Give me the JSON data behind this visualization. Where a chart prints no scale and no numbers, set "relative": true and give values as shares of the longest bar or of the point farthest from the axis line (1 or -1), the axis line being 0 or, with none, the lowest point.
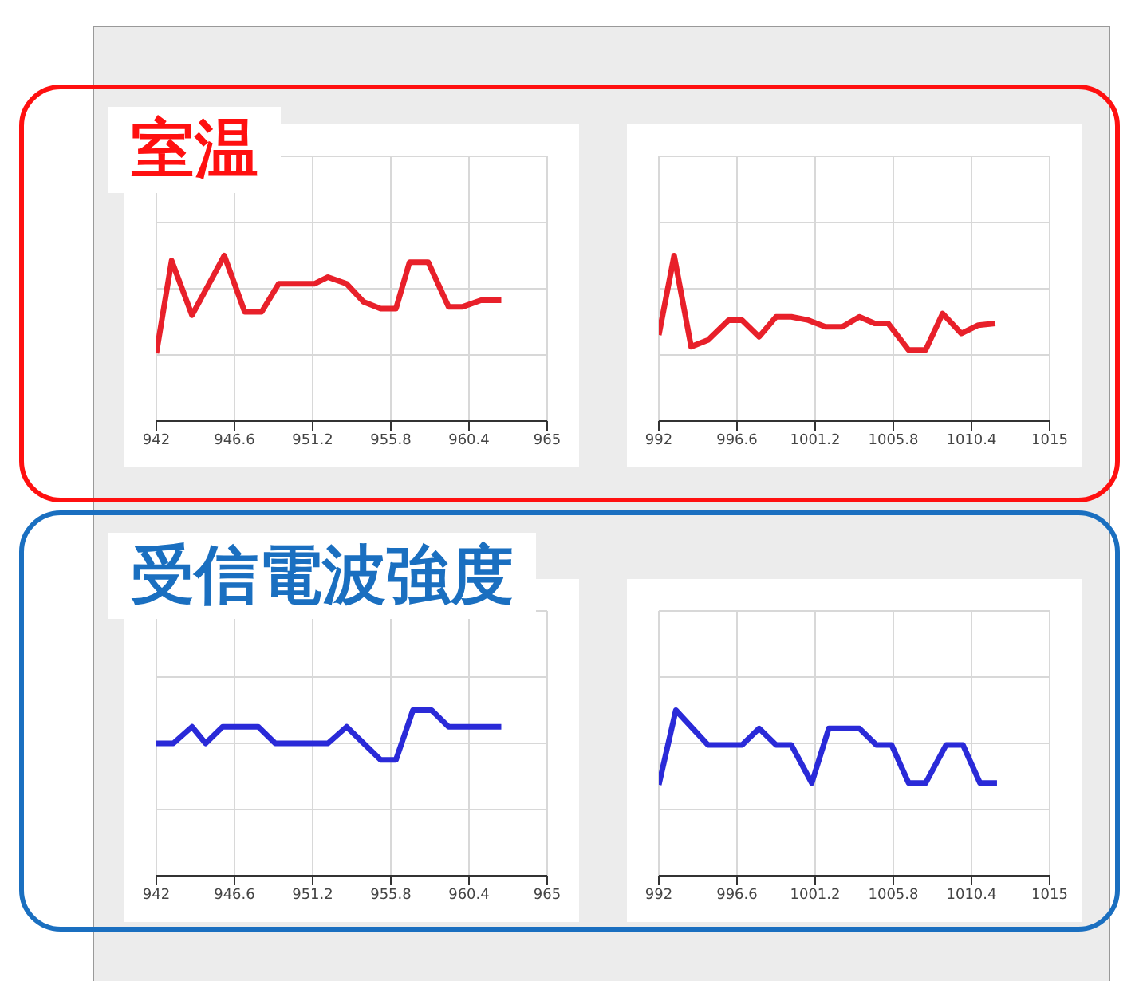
{
  "chart_data": [
    {
      "type": "line",
      "relative": true,
      "x": [
        942,
        942.9,
        944.1,
        946.0,
        947.2,
        948.2,
        949.2,
        951.3,
        952.1,
        953.2,
        954.2,
        955.2,
        956.1,
        956.9,
        958.0,
        959.2,
        960.0,
        961.1,
        962.3
      ],
      "series": [
        {
          "color": "#e8202a",
          "values": [
            0.41,
            0.97,
            0.64,
            1,
            0.66,
            0.66,
            0.83,
            0.83,
            0.87,
            0.83,
            0.72,
            0.68,
            0.68,
            0.96,
            0.96,
            0.69,
            0.69,
            0.73,
            0.73
          ]
        }
      ],
      "xlim": [
        942,
        965
      ],
      "xticks": [
        942,
        946.6,
        951.2,
        955.8,
        960.4,
        965
      ],
      "grid": true,
      "tick_labels": "x",
      "marker": "none",
      "line_style": "solid",
      "legend": false,
      "annotations": [
        "室温"
      ]
    },
    {
      "type": "line",
      "relative": true,
      "x": [
        992,
        992.9,
        993.9,
        994.9,
        996.1,
        996.9,
        997.9,
        998.9,
        999.8,
        1000.8,
        1001.8,
        1002.8,
        1003.8,
        1004.7,
        1005.5,
        1006.7,
        1007.7,
        1008.7,
        1009.8,
        1010.8,
        1011.8
      ],
      "series": [
        {
          "color": "#e8202a",
          "values": [
            0.52,
            1,
            0.45,
            0.49,
            0.61,
            0.61,
            0.51,
            0.63,
            0.63,
            0.61,
            0.57,
            0.57,
            0.63,
            0.59,
            0.59,
            0.43,
            0.43,
            0.65,
            0.53,
            0.58,
            0.59
          ]
        }
      ],
      "xlim": [
        992,
        1015
      ],
      "xticks": [
        992,
        996.6,
        1001.2,
        1005.8,
        1010.4,
        1015
      ],
      "grid": true,
      "tick_labels": "x",
      "marker": "none",
      "line_style": "solid",
      "legend": false
    },
    {
      "type": "line",
      "relative": true,
      "x": [
        942,
        943.0,
        944.1,
        944.9,
        945.9,
        948.0,
        949.0,
        952.1,
        953.2,
        954.2,
        955.2,
        956.1,
        957.1,
        958.2,
        959.2,
        962.3
      ],
      "series": [
        {
          "color": "#2a2ad8",
          "values": [
            0.8,
            0.8,
            0.9,
            0.8,
            0.9,
            0.9,
            0.8,
            0.8,
            0.9,
            0.8,
            0.7,
            0.7,
            1,
            1,
            0.9,
            0.9
          ]
        }
      ],
      "xlim": [
        942,
        965
      ],
      "xticks": [
        942,
        946.6,
        951.2,
        955.8,
        960.4,
        965
      ],
      "grid": true,
      "tick_labels": "x",
      "marker": "none",
      "line_style": "solid",
      "legend": false,
      "annotations": [
        "受信電波強度"
      ]
    },
    {
      "type": "line",
      "relative": true,
      "x": [
        992,
        993.0,
        994.9,
        996.9,
        997.9,
        998.9,
        999.8,
        1001.0,
        1002.0,
        1003.8,
        1004.8,
        1005.7,
        1006.7,
        1007.7,
        1008.9,
        1009.9,
        1010.9,
        1011.9
      ],
      "series": [
        {
          "color": "#2a2ad8",
          "values": [
            0.55,
            1,
            0.79,
            0.79,
            0.89,
            0.79,
            0.79,
            0.56,
            0.89,
            0.89,
            0.79,
            0.79,
            0.56,
            0.56,
            0.79,
            0.79,
            0.56,
            0.56
          ]
        }
      ],
      "xlim": [
        992,
        1015
      ],
      "xticks": [
        992,
        996.6,
        1001.2,
        1005.8,
        1010.4,
        1015
      ],
      "grid": true,
      "tick_labels": "x",
      "marker": "none",
      "line_style": "solid",
      "legend": false
    }
  ]
}
